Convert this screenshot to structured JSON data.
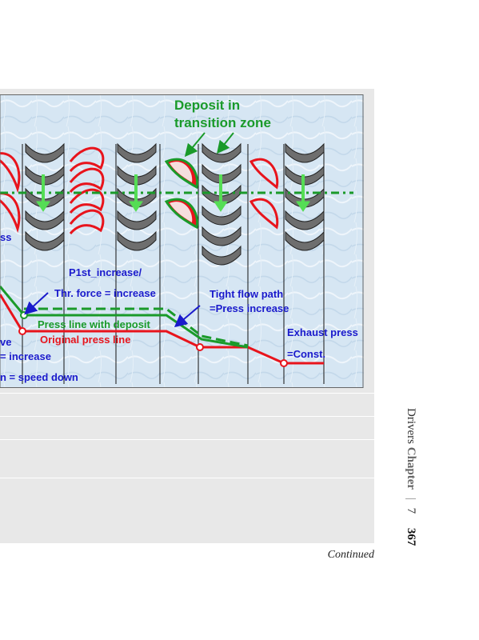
{
  "figure": {
    "labels": {
      "deposit_title_1": "Deposit in",
      "deposit_title_2": "transition zone",
      "ss": "ss",
      "p1st": "P1st_increase/",
      "thr_force": "Thr. force = increase",
      "tight_1": "Tight flow path",
      "tight_2": "=Press increase",
      "press_deposit": "Press line with deposit",
      "original_press": "Original press line",
      "exhaust": "Exhaust press",
      "const": "=Const.",
      "ve": "ve",
      "eq_increase": "= increase",
      "speed_down": "n = speed down"
    },
    "colors": {
      "blade_red": "#e8141c",
      "deposit_green": "#1a9a2a",
      "text_blue": "#1a1acc",
      "arrow_green": "#55dd55",
      "stator_gray": "#6e6e6e",
      "background": "#d6e6f3"
    }
  },
  "footer": {
    "continued": "Continued"
  },
  "running_head": {
    "title": "Drivers",
    "chapter_word": "Chapter",
    "separator": "|",
    "chapter_num": "7",
    "page": "367"
  }
}
